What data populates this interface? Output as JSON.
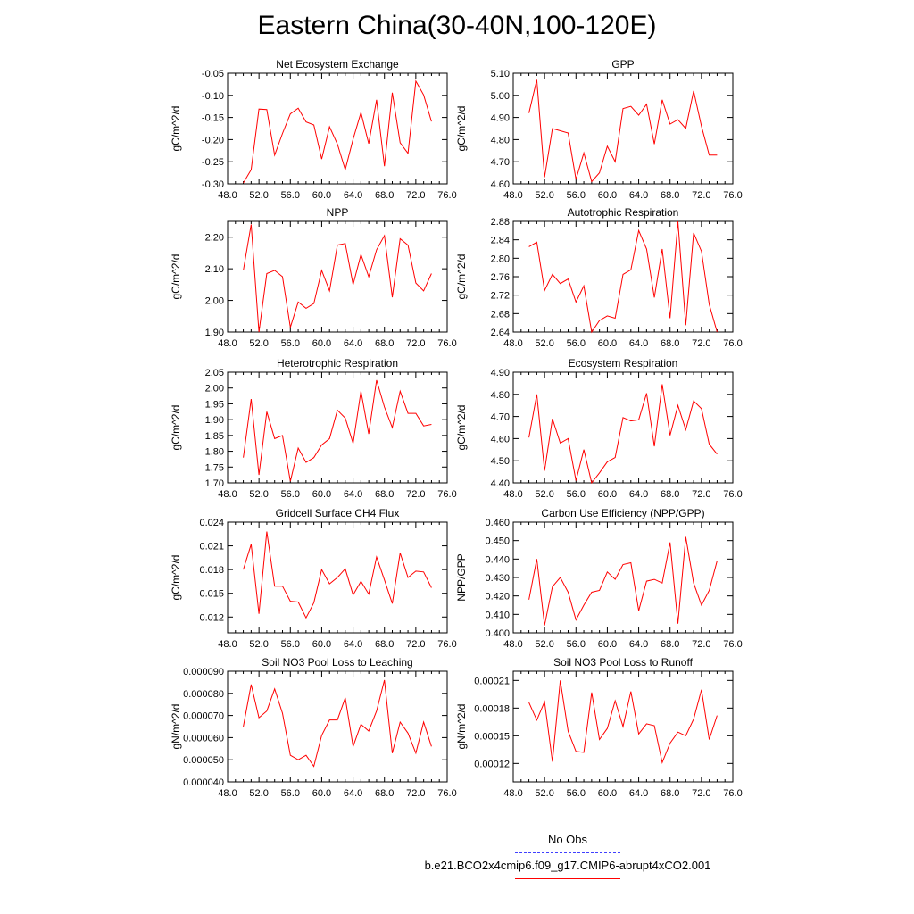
{
  "title": "Eastern China(30-40N,100-120E)",
  "colors": {
    "model": "#ff0000",
    "obs": "#4040ff",
    "axis": "#000000"
  },
  "legend": {
    "obs_label": "No Obs",
    "model_label": "b.e21.BCO2x4cmip6.f09_g17.CMIP6-abrupt4xCO2.001"
  },
  "chart_data": [
    {
      "type": "line",
      "title": "Net Ecosystem Exchange",
      "ylabel": "gC/m^2/d",
      "xlabel": "",
      "xlim": [
        48,
        76
      ],
      "ylim": [
        -0.3,
        -0.05
      ],
      "xticks": [
        "48.0",
        "52.0",
        "56.0",
        "60.0",
        "64.0",
        "68.0",
        "72.0",
        "76.0"
      ],
      "yticks": [
        "-0.05",
        "-0.10",
        "-0.15",
        "-0.20",
        "-0.25",
        "-0.30"
      ],
      "x": [
        50,
        51,
        52,
        53,
        54,
        55,
        56,
        57,
        58,
        59,
        60,
        61,
        62,
        63,
        64,
        65,
        66,
        67,
        68,
        69,
        70,
        71,
        72,
        73,
        74
      ],
      "series": [
        {
          "name": "b.e21.BCO2x4cmip6.f09_g17.CMIP6-abrupt4xCO2.001",
          "values": [
            -0.298,
            -0.268,
            -0.131,
            -0.132,
            -0.235,
            -0.186,
            -0.142,
            -0.129,
            -0.16,
            -0.167,
            -0.244,
            -0.171,
            -0.21,
            -0.268,
            -0.199,
            -0.139,
            -0.209,
            -0.11,
            -0.26,
            -0.094,
            -0.207,
            -0.231,
            -0.068,
            -0.099,
            -0.159
          ]
        }
      ]
    },
    {
      "type": "line",
      "title": "GPP",
      "ylabel": "gC/m^2/d",
      "xlabel": "",
      "xlim": [
        48,
        76
      ],
      "ylim": [
        4.6,
        5.1
      ],
      "xticks": [
        "48.0",
        "52.0",
        "56.0",
        "60.0",
        "64.0",
        "68.0",
        "72.0",
        "76.0"
      ],
      "yticks": [
        "5.10",
        "5.00",
        "4.90",
        "4.80",
        "4.70",
        "4.60"
      ],
      "x": [
        50,
        51,
        52,
        53,
        54,
        55,
        56,
        57,
        58,
        59,
        60,
        61,
        62,
        63,
        64,
        65,
        66,
        67,
        68,
        69,
        70,
        71,
        72,
        73,
        74
      ],
      "series": [
        {
          "name": "b.e21.BCO2x4cmip6.f09_g17.CMIP6-abrupt4xCO2.001",
          "values": [
            4.92,
            5.07,
            4.63,
            4.85,
            4.84,
            4.83,
            4.62,
            4.74,
            4.61,
            4.65,
            4.77,
            4.7,
            4.94,
            4.95,
            4.91,
            4.96,
            4.78,
            4.98,
            4.87,
            4.89,
            4.85,
            5.02,
            4.86,
            4.73,
            4.73
          ]
        }
      ]
    },
    {
      "type": "line",
      "title": "NPP",
      "ylabel": "gC/m^2/d",
      "xlabel": "",
      "xlim": [
        48,
        76
      ],
      "ylim": [
        1.9,
        2.25
      ],
      "xticks": [
        "48.0",
        "52.0",
        "56.0",
        "60.0",
        "64.0",
        "68.0",
        "72.0",
        "76.0"
      ],
      "yticks": [
        "2.20",
        "2.10",
        "2.00",
        "1.90"
      ],
      "x": [
        50,
        51,
        52,
        53,
        54,
        55,
        56,
        57,
        58,
        59,
        60,
        61,
        62,
        63,
        64,
        65,
        66,
        67,
        68,
        69,
        70,
        71,
        72,
        73,
        74
      ],
      "series": [
        {
          "name": "b.e21.BCO2x4cmip6.f09_g17.CMIP6-abrupt4xCO2.001",
          "values": [
            2.095,
            2.24,
            1.9,
            2.085,
            2.095,
            2.075,
            1.915,
            1.995,
            1.975,
            1.99,
            2.095,
            2.03,
            2.175,
            2.18,
            2.05,
            2.145,
            2.075,
            2.16,
            2.205,
            2.01,
            2.195,
            2.175,
            2.055,
            2.03,
            2.085
          ]
        }
      ]
    },
    {
      "type": "line",
      "title": "Autotrophic Respiration",
      "ylabel": "gC/m^2/d",
      "xlabel": "",
      "xlim": [
        48,
        76
      ],
      "ylim": [
        2.64,
        2.88
      ],
      "xticks": [
        "48.0",
        "52.0",
        "56.0",
        "60.0",
        "64.0",
        "68.0",
        "72.0",
        "76.0"
      ],
      "yticks": [
        "2.88",
        "2.84",
        "2.80",
        "2.76",
        "2.72",
        "2.68",
        "2.64"
      ],
      "x": [
        50,
        51,
        52,
        53,
        54,
        55,
        56,
        57,
        58,
        59,
        60,
        61,
        62,
        63,
        64,
        65,
        66,
        67,
        68,
        69,
        70,
        71,
        72,
        73,
        74
      ],
      "series": [
        {
          "name": "b.e21.BCO2x4cmip6.f09_g17.CMIP6-abrupt4xCO2.001",
          "values": [
            2.825,
            2.835,
            2.73,
            2.765,
            2.745,
            2.755,
            2.705,
            2.74,
            2.64,
            2.665,
            2.675,
            2.67,
            2.765,
            2.775,
            2.86,
            2.82,
            2.715,
            2.82,
            2.67,
            2.88,
            2.655,
            2.855,
            2.815,
            2.7,
            2.64
          ]
        }
      ]
    },
    {
      "type": "line",
      "title": "Heterotrophic Respiration",
      "ylabel": "gC/m^2/d",
      "xlabel": "",
      "xlim": [
        48,
        76
      ],
      "ylim": [
        1.7,
        2.05
      ],
      "xticks": [
        "48.0",
        "52.0",
        "56.0",
        "60.0",
        "64.0",
        "68.0",
        "72.0",
        "76.0"
      ],
      "yticks": [
        "2.05",
        "2.00",
        "1.95",
        "1.90",
        "1.85",
        "1.80",
        "1.75",
        "1.70"
      ],
      "x": [
        50,
        51,
        52,
        53,
        54,
        55,
        56,
        57,
        58,
        59,
        60,
        61,
        62,
        63,
        64,
        65,
        66,
        67,
        68,
        69,
        70,
        71,
        72,
        73,
        74
      ],
      "series": [
        {
          "name": "b.e21.BCO2x4cmip6.f09_g17.CMIP6-abrupt4xCO2.001",
          "values": [
            1.78,
            1.965,
            1.725,
            1.925,
            1.84,
            1.85,
            1.705,
            1.81,
            1.765,
            1.78,
            1.82,
            1.84,
            1.93,
            1.905,
            1.825,
            1.99,
            1.855,
            2.025,
            1.94,
            1.875,
            1.99,
            1.92,
            1.92,
            1.88,
            1.885
          ]
        }
      ]
    },
    {
      "type": "line",
      "title": "Ecosystem Respiration",
      "ylabel": "gC/m^2/d",
      "xlabel": "",
      "xlim": [
        48,
        76
      ],
      "ylim": [
        4.4,
        4.9
      ],
      "xticks": [
        "48.0",
        "52.0",
        "56.0",
        "60.0",
        "64.0",
        "68.0",
        "72.0",
        "76.0"
      ],
      "yticks": [
        "4.90",
        "4.80",
        "4.70",
        "4.60",
        "4.50",
        "4.40"
      ],
      "x": [
        50,
        51,
        52,
        53,
        54,
        55,
        56,
        57,
        58,
        59,
        60,
        61,
        62,
        63,
        64,
        65,
        66,
        67,
        68,
        69,
        70,
        71,
        72,
        73,
        74
      ],
      "series": [
        {
          "name": "b.e21.BCO2x4cmip6.f09_g17.CMIP6-abrupt4xCO2.001",
          "values": [
            4.605,
            4.8,
            4.455,
            4.69,
            4.58,
            4.6,
            4.41,
            4.55,
            4.4,
            4.445,
            4.495,
            4.515,
            4.695,
            4.68,
            4.685,
            4.805,
            4.565,
            4.845,
            4.615,
            4.75,
            4.64,
            4.77,
            4.735,
            4.575,
            4.53
          ]
        }
      ]
    },
    {
      "type": "line",
      "title": "Gridcell Surface CH4 Flux",
      "ylabel": "gC/m^2/d",
      "xlabel": "",
      "xlim": [
        48,
        76
      ],
      "ylim": [
        0.01,
        0.024
      ],
      "xticks": [
        "48.0",
        "52.0",
        "56.0",
        "60.0",
        "64.0",
        "68.0",
        "72.0",
        "76.0"
      ],
      "yticks": [
        "0.024",
        "0.021",
        "0.018",
        "0.015",
        "0.012"
      ],
      "x": [
        50,
        51,
        52,
        53,
        54,
        55,
        56,
        57,
        58,
        59,
        60,
        61,
        62,
        63,
        64,
        65,
        66,
        67,
        68,
        69,
        70,
        71,
        72,
        73,
        74
      ],
      "series": [
        {
          "name": "b.e21.BCO2x4cmip6.f09_g17.CMIP6-abrupt4xCO2.001",
          "values": [
            0.018,
            0.0212,
            0.0124,
            0.0228,
            0.0159,
            0.0159,
            0.014,
            0.0139,
            0.0119,
            0.0138,
            0.018,
            0.0162,
            0.017,
            0.0181,
            0.0148,
            0.0165,
            0.0149,
            0.0196,
            0.0167,
            0.0137,
            0.0201,
            0.017,
            0.0178,
            0.0177,
            0.0157
          ]
        }
      ]
    },
    {
      "type": "line",
      "title": "Carbon Use Efficiency (NPP/GPP)",
      "ylabel": "NPP/GPP",
      "xlabel": "",
      "xlim": [
        48,
        76
      ],
      "ylim": [
        0.4,
        0.46
      ],
      "xticks": [
        "48.0",
        "52.0",
        "56.0",
        "60.0",
        "64.0",
        "68.0",
        "72.0",
        "76.0"
      ],
      "yticks": [
        "0.460",
        "0.450",
        "0.440",
        "0.430",
        "0.420",
        "0.410",
        "0.400"
      ],
      "x": [
        50,
        51,
        52,
        53,
        54,
        55,
        56,
        57,
        58,
        59,
        60,
        61,
        62,
        63,
        64,
        65,
        66,
        67,
        68,
        69,
        70,
        71,
        72,
        73,
        74
      ],
      "series": [
        {
          "name": "b.e21.BCO2x4cmip6.f09_g17.CMIP6-abrupt4xCO2.001",
          "values": [
            0.418,
            0.44,
            0.404,
            0.425,
            0.43,
            0.422,
            0.407,
            0.415,
            0.422,
            0.423,
            0.433,
            0.429,
            0.437,
            0.438,
            0.412,
            0.428,
            0.429,
            0.427,
            0.449,
            0.405,
            0.452,
            0.427,
            0.415,
            0.423,
            0.439
          ]
        }
      ]
    },
    {
      "type": "line",
      "title": "Soil NO3 Pool Loss to Leaching",
      "ylabel": "gN/m^2/d",
      "xlabel": "",
      "xlim": [
        48,
        76
      ],
      "ylim": [
        4e-05,
        9e-05
      ],
      "xticks": [
        "48.0",
        "52.0",
        "56.0",
        "60.0",
        "64.0",
        "68.0",
        "72.0",
        "76.0"
      ],
      "yticks": [
        "0.000090",
        "0.000080",
        "0.000070",
        "0.000060",
        "0.000050",
        "0.000040"
      ],
      "x": [
        50,
        51,
        52,
        53,
        54,
        55,
        56,
        57,
        58,
        59,
        60,
        61,
        62,
        63,
        64,
        65,
        66,
        67,
        68,
        69,
        70,
        71,
        72,
        73,
        74
      ],
      "series": [
        {
          "name": "b.e21.BCO2x4cmip6.f09_g17.CMIP6-abrupt4xCO2.001",
          "values": [
            6.5e-05,
            8.4e-05,
            6.9e-05,
            7.2e-05,
            8.2e-05,
            7.1e-05,
            5.2e-05,
            5e-05,
            5.2e-05,
            4.7e-05,
            6.1e-05,
            6.8e-05,
            6.8e-05,
            7.8e-05,
            5.6e-05,
            6.6e-05,
            6.3e-05,
            7.2e-05,
            8.6e-05,
            5.3e-05,
            6.7e-05,
            6.2e-05,
            5.3e-05,
            6.7e-05,
            5.6e-05
          ]
        }
      ]
    },
    {
      "type": "line",
      "title": "Soil NO3 Pool Loss to Runoff",
      "ylabel": "gN/m^2/d",
      "xlabel": "",
      "xlim": [
        48,
        76
      ],
      "ylim": [
        0.0001,
        0.00022
      ],
      "xticks": [
        "48.0",
        "52.0",
        "56.0",
        "60.0",
        "64.0",
        "68.0",
        "72.0",
        "76.0"
      ],
      "yticks": [
        "0.00021",
        "0.00018",
        "0.00015",
        "0.00012"
      ],
      "x": [
        50,
        51,
        52,
        53,
        54,
        55,
        56,
        57,
        58,
        59,
        60,
        61,
        62,
        63,
        64,
        65,
        66,
        67,
        68,
        69,
        70,
        71,
        72,
        73,
        74
      ],
      "series": [
        {
          "name": "b.e21.BCO2x4cmip6.f09_g17.CMIP6-abrupt4xCO2.001",
          "values": [
            0.000186,
            0.000167,
            0.000187,
            0.000122,
            0.00021,
            0.000155,
            0.000133,
            0.000132,
            0.000197,
            0.000146,
            0.000158,
            0.000188,
            0.00016,
            0.000198,
            0.000152,
            0.000163,
            0.000161,
            0.000121,
            0.000142,
            0.000154,
            0.00015,
            0.000168,
            0.0002,
            0.000146,
            0.000172
          ]
        }
      ]
    }
  ]
}
